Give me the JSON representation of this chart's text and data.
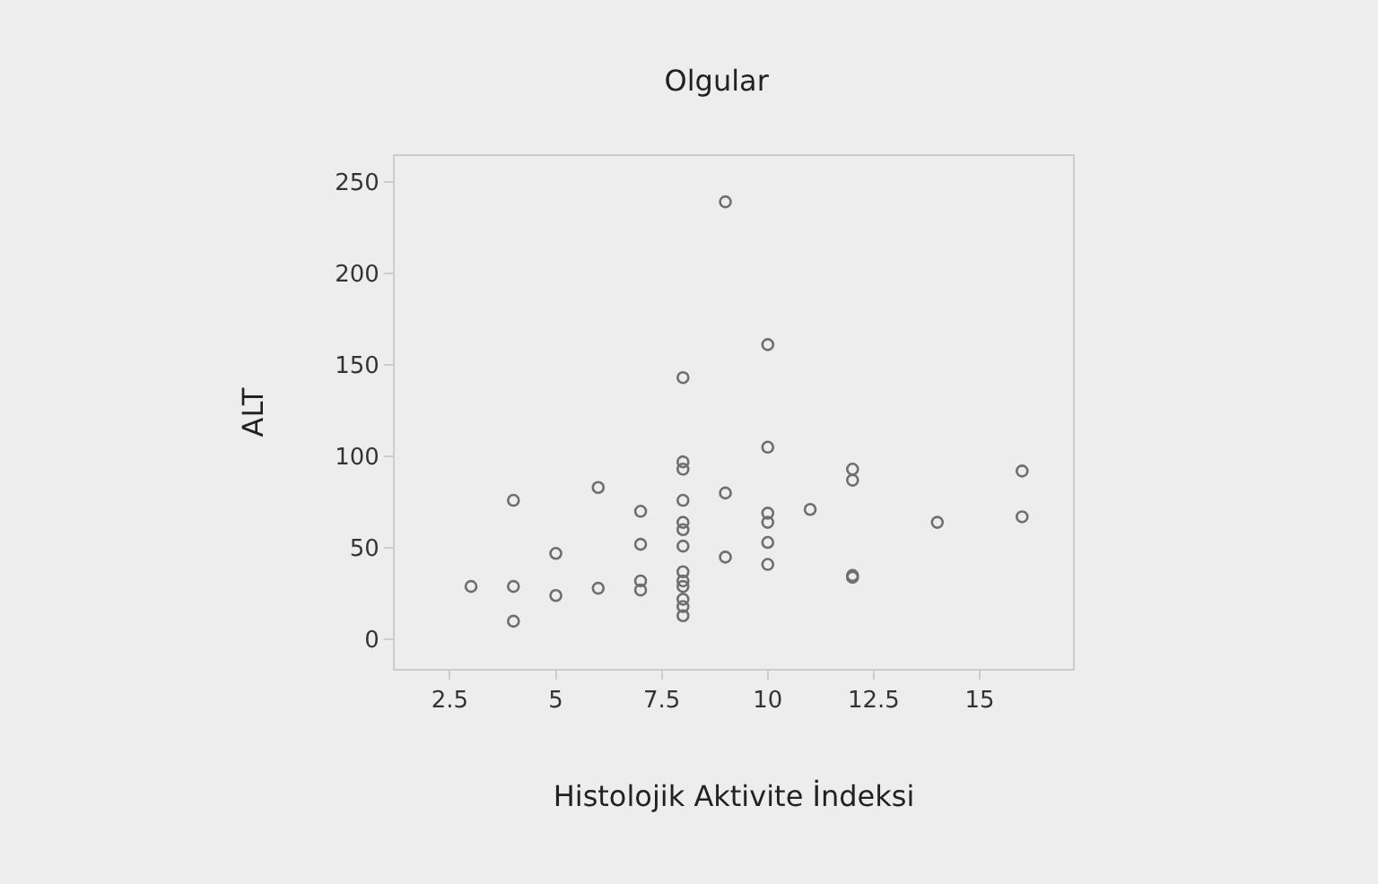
{
  "chart_data": {
    "type": "scatter",
    "title": "Olgular",
    "xlabel": "Histolojik Aktivite İndeksi",
    "ylabel": "ALT",
    "x": [
      3,
      4,
      4,
      4,
      5,
      5,
      6,
      6,
      7,
      7,
      7,
      7,
      8,
      8,
      8,
      8,
      8,
      8,
      8,
      8,
      8,
      8,
      8,
      8,
      8,
      9,
      9,
      9,
      10,
      10,
      10,
      10,
      10,
      10,
      11,
      12,
      12,
      12,
      12,
      14,
      16,
      16
    ],
    "values": [
      29,
      76,
      29,
      10,
      47,
      24,
      83,
      28,
      70,
      52,
      32,
      27,
      143,
      97,
      93,
      76,
      64,
      60,
      51,
      37,
      32,
      29,
      22,
      18,
      13,
      239,
      80,
      45,
      161,
      105,
      69,
      64,
      53,
      41,
      71,
      93,
      87,
      35,
      34,
      64,
      92,
      67
    ],
    "color": "#6e6e6e",
    "marker": "circle",
    "xlim": [
      1.2,
      17.2
    ],
    "ylim": [
      -16,
      264
    ],
    "xticks": [
      2.5,
      5,
      7.5,
      10,
      12.5,
      15
    ],
    "yticks": [
      0,
      50,
      100,
      150,
      200,
      250
    ],
    "grid": false,
    "legend": false
  }
}
